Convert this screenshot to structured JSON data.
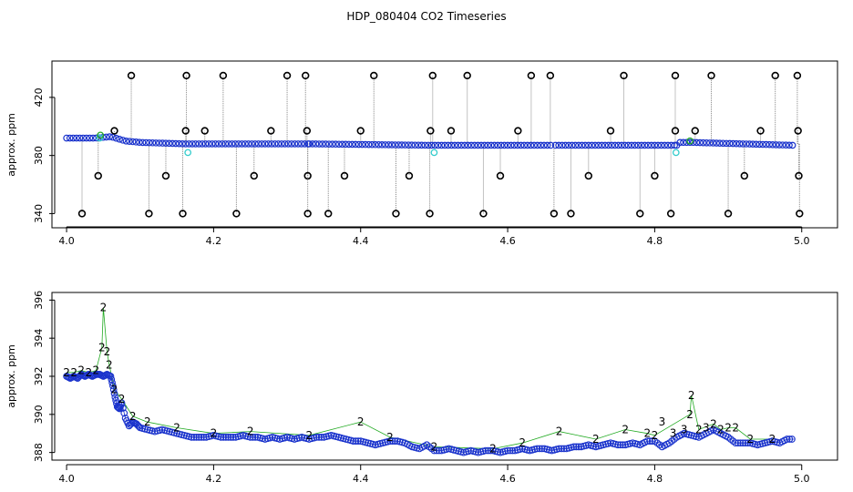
{
  "title": "HDP_080404  CO2 Timeseries",
  "chart_data": [
    {
      "type": "scatter",
      "panel": "top",
      "title": "",
      "xlabel": "",
      "ylabel": "approx. ppm",
      "xlim": [
        3.99,
        5.04
      ],
      "ylim": [
        334,
        445
      ],
      "xticks": [
        "4.0",
        "4.2",
        "4.4",
        "4.6",
        "4.8",
        "5.0"
      ],
      "xtick_values": [
        4.0,
        4.2,
        4.4,
        4.6,
        4.8,
        5.0
      ],
      "yticks": [
        "340",
        "380",
        "420"
      ],
      "ytick_values": [
        340,
        380,
        420
      ],
      "grid": false,
      "colors": {
        "outlier": "#000000",
        "main": "#1a33cc",
        "secondary": "#33cccc",
        "tertiary": "#22aa22",
        "trace": "#888888"
      },
      "baseline_segments": [
        {
          "x": [
            4.0,
            4.04,
            4.06,
            4.08,
            4.1,
            4.16,
            4.33
          ],
          "y": [
            392,
            392,
            393,
            390,
            389,
            388,
            388
          ]
        },
        {
          "x": [
            4.33,
            4.5,
            4.57,
            4.66
          ],
          "y": [
            388,
            387,
            387,
            387
          ]
        },
        {
          "x": [
            4.665,
            4.83
          ],
          "y": [
            387,
            387
          ]
        },
        {
          "x": [
            4.83,
            4.85,
            4.99
          ],
          "y": [
            389,
            389,
            387
          ]
        }
      ],
      "high_spikes_x": [
        4.088,
        4.163,
        4.213,
        4.3,
        4.325,
        4.418,
        4.498,
        4.545,
        4.632,
        4.658,
        4.758,
        4.828,
        4.877,
        4.964,
        4.994
      ],
      "high_spike_y": 435,
      "mid_spikes_x": [
        4.065,
        4.162,
        4.188,
        4.278,
        4.327,
        4.4,
        4.495,
        4.523,
        4.614,
        4.74,
        4.828,
        4.855,
        4.944,
        4.995
      ],
      "mid_spike_y": 397,
      "low_spikes_x": [
        4.021,
        4.112,
        4.158,
        4.231,
        4.328,
        4.356,
        4.448,
        4.494,
        4.567,
        4.663,
        4.686,
        4.78,
        4.822,
        4.9,
        4.997
      ],
      "low_spike_y": 340,
      "lowmid_spikes_x": [
        4.043,
        4.135,
        4.255,
        4.328,
        4.378,
        4.466,
        4.59,
        4.71,
        4.8,
        4.922,
        4.996
      ],
      "lowmid_spike_y": 366,
      "secondary_points": [
        [
          4.165,
          382
        ],
        [
          4.5,
          382
        ],
        [
          4.829,
          382
        ],
        [
          4.045,
          392
        ]
      ],
      "tertiary_points": [
        [
          4.046,
          394
        ],
        [
          4.848,
          390
        ]
      ]
    },
    {
      "type": "scatter",
      "panel": "bottom",
      "title": "",
      "xlabel": "",
      "ylabel": "approx. ppm",
      "xlim": [
        3.99,
        5.04
      ],
      "ylim": [
        387.6,
        396.4
      ],
      "xticks": [
        "4.0",
        "4.2",
        "4.4",
        "4.6",
        "4.8",
        "5.0"
      ],
      "xtick_values": [
        4.0,
        4.2,
        4.4,
        4.6,
        4.8,
        5.0
      ],
      "yticks": [
        "388",
        "390",
        "392",
        "394",
        "396"
      ],
      "ytick_values": [
        388,
        390,
        392,
        394,
        396
      ],
      "grid": false,
      "colors": {
        "series3": "#1a33cc",
        "series2": "#22aa22"
      },
      "series3_points": [
        [
          4.0,
          392.0
        ],
        [
          4.005,
          391.9
        ],
        [
          4.01,
          392.0
        ],
        [
          4.015,
          391.9
        ],
        [
          4.02,
          392.1
        ],
        [
          4.025,
          392.0
        ],
        [
          4.03,
          392.1
        ],
        [
          4.035,
          392.0
        ],
        [
          4.04,
          392.1
        ],
        [
          4.045,
          392.1
        ],
        [
          4.05,
          392.0
        ],
        [
          4.055,
          392.1
        ],
        [
          4.06,
          392.0
        ],
        [
          4.063,
          391.5
        ],
        [
          4.066,
          390.9
        ],
        [
          4.069,
          390.4
        ],
        [
          4.072,
          390.3
        ],
        [
          4.075,
          390.6
        ],
        [
          4.08,
          389.8
        ],
        [
          4.085,
          389.4
        ],
        [
          4.09,
          389.6
        ],
        [
          4.095,
          389.5
        ],
        [
          4.1,
          389.3
        ],
        [
          4.11,
          389.2
        ],
        [
          4.12,
          389.1
        ],
        [
          4.13,
          389.2
        ],
        [
          4.14,
          389.1
        ],
        [
          4.15,
          389.0
        ],
        [
          4.16,
          388.9
        ],
        [
          4.17,
          388.8
        ],
        [
          4.18,
          388.8
        ],
        [
          4.19,
          388.8
        ],
        [
          4.2,
          388.9
        ],
        [
          4.21,
          388.8
        ],
        [
          4.22,
          388.8
        ],
        [
          4.23,
          388.8
        ],
        [
          4.24,
          388.9
        ],
        [
          4.25,
          388.8
        ],
        [
          4.26,
          388.8
        ],
        [
          4.27,
          388.7
        ],
        [
          4.28,
          388.8
        ],
        [
          4.29,
          388.7
        ],
        [
          4.3,
          388.8
        ],
        [
          4.31,
          388.7
        ],
        [
          4.32,
          388.8
        ],
        [
          4.33,
          388.7
        ],
        [
          4.34,
          388.8
        ],
        [
          4.35,
          388.8
        ],
        [
          4.36,
          388.9
        ],
        [
          4.37,
          388.8
        ],
        [
          4.38,
          388.7
        ],
        [
          4.39,
          388.6
        ],
        [
          4.4,
          388.6
        ],
        [
          4.41,
          388.5
        ],
        [
          4.42,
          388.4
        ],
        [
          4.43,
          388.5
        ],
        [
          4.44,
          388.6
        ],
        [
          4.45,
          388.6
        ],
        [
          4.46,
          388.5
        ],
        [
          4.47,
          388.3
        ],
        [
          4.48,
          388.2
        ],
        [
          4.49,
          388.4
        ],
        [
          4.5,
          388.1
        ],
        [
          4.51,
          388.1
        ],
        [
          4.52,
          388.2
        ],
        [
          4.53,
          388.1
        ],
        [
          4.54,
          388.0
        ],
        [
          4.55,
          388.1
        ],
        [
          4.56,
          388.0
        ],
        [
          4.57,
          388.1
        ],
        [
          4.58,
          388.1
        ],
        [
          4.59,
          388.0
        ],
        [
          4.6,
          388.1
        ],
        [
          4.61,
          388.1
        ],
        [
          4.62,
          388.2
        ],
        [
          4.63,
          388.1
        ],
        [
          4.64,
          388.2
        ],
        [
          4.65,
          388.2
        ],
        [
          4.66,
          388.1
        ],
        [
          4.67,
          388.2
        ],
        [
          4.68,
          388.2
        ],
        [
          4.69,
          388.3
        ],
        [
          4.7,
          388.3
        ],
        [
          4.71,
          388.4
        ],
        [
          4.72,
          388.3
        ],
        [
          4.73,
          388.4
        ],
        [
          4.74,
          388.5
        ],
        [
          4.75,
          388.4
        ],
        [
          4.76,
          388.4
        ],
        [
          4.77,
          388.5
        ],
        [
          4.78,
          388.4
        ],
        [
          4.79,
          388.6
        ],
        [
          4.8,
          388.6
        ],
        [
          4.81,
          388.3
        ],
        [
          4.82,
          388.5
        ],
        [
          4.83,
          388.8
        ],
        [
          4.84,
          389.0
        ],
        [
          4.85,
          388.9
        ],
        [
          4.86,
          388.8
        ],
        [
          4.87,
          389.0
        ],
        [
          4.88,
          389.2
        ],
        [
          4.89,
          389.0
        ],
        [
          4.9,
          388.8
        ],
        [
          4.91,
          388.5
        ],
        [
          4.92,
          388.5
        ],
        [
          4.93,
          388.5
        ],
        [
          4.94,
          388.4
        ],
        [
          4.95,
          388.5
        ],
        [
          4.96,
          388.6
        ],
        [
          4.97,
          388.5
        ],
        [
          4.98,
          388.7
        ],
        [
          4.99,
          388.7
        ]
      ],
      "series2_points": [
        [
          4.0,
          392.2
        ],
        [
          4.01,
          392.2
        ],
        [
          4.02,
          392.3
        ],
        [
          4.03,
          392.2
        ],
        [
          4.04,
          392.3
        ],
        [
          4.048,
          393.5
        ],
        [
          4.05,
          395.6
        ],
        [
          4.055,
          393.3
        ],
        [
          4.058,
          392.6
        ],
        [
          4.065,
          391.3
        ],
        [
          4.075,
          390.8
        ],
        [
          4.09,
          389.9
        ],
        [
          4.11,
          389.6
        ],
        [
          4.15,
          389.3
        ],
        [
          4.2,
          389.0
        ],
        [
          4.25,
          389.1
        ],
        [
          4.33,
          388.9
        ],
        [
          4.4,
          389.6
        ],
        [
          4.44,
          388.8
        ],
        [
          4.5,
          388.3
        ],
        [
          4.58,
          388.2
        ],
        [
          4.62,
          388.5
        ],
        [
          4.67,
          389.1
        ],
        [
          4.72,
          388.7
        ],
        [
          4.76,
          389.2
        ],
        [
          4.79,
          389.0
        ],
        [
          4.8,
          388.9
        ],
        [
          4.85,
          391.0
        ],
        [
          4.848,
          390.0
        ],
        [
          4.86,
          389.2
        ],
        [
          4.88,
          389.5
        ],
        [
          4.89,
          389.2
        ],
        [
          4.9,
          389.3
        ],
        [
          4.91,
          389.3
        ],
        [
          4.93,
          388.7
        ],
        [
          4.96,
          388.7
        ]
      ]
    }
  ]
}
